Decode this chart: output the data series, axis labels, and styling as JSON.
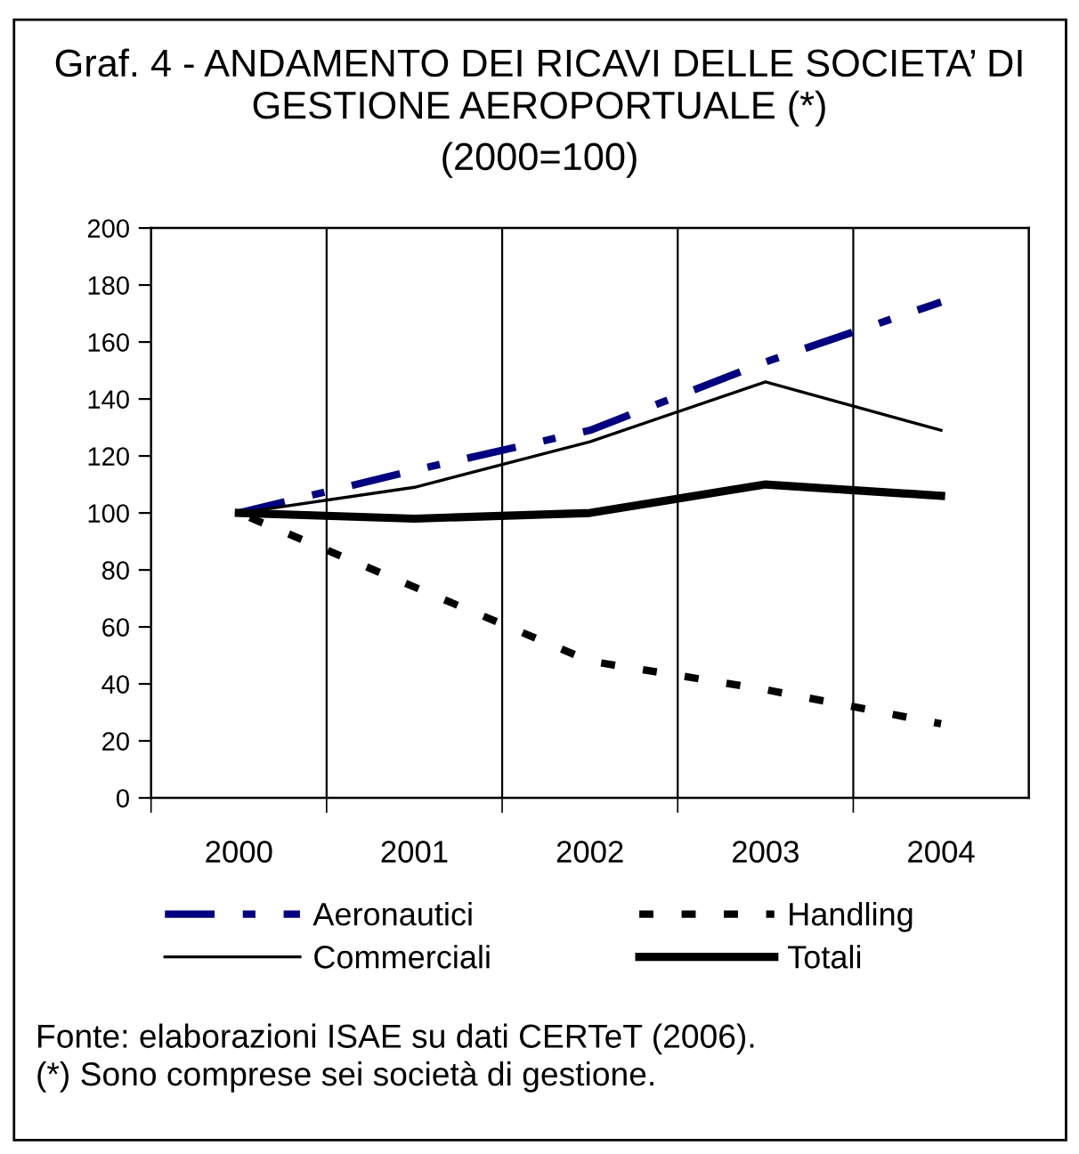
{
  "chart_data": {
    "type": "line",
    "title": "Graf. 4 - ANDAMENTO DEI RICAVI DELLE SOCIETA’ DI GESTIONE AEROPORTUALE (*)",
    "subtitle": "(2000=100)",
    "categories": [
      "2000",
      "2001",
      "2002",
      "2003",
      "2004"
    ],
    "series": [
      {
        "name": "Aeronautici",
        "color": "#000080",
        "line_style": "dashed",
        "values": [
          100,
          115,
          129,
          153,
          174
        ]
      },
      {
        "name": "Handling",
        "color": "#000000",
        "line_style": "dotted",
        "values": [
          100,
          74,
          48,
          38,
          26
        ]
      },
      {
        "name": "Commerciali",
        "color": "#000000",
        "line_style": "solid",
        "values": [
          100,
          109,
          125,
          146,
          129
        ]
      },
      {
        "name": "Totali",
        "color": "#000000",
        "line_style": "solid",
        "values": [
          100,
          98,
          100,
          110,
          106
        ]
      }
    ],
    "ylim": [
      0,
      200
    ],
    "yticks": [
      0,
      20,
      40,
      60,
      80,
      100,
      120,
      140,
      160,
      180,
      200
    ],
    "grid": "x",
    "legend": "bottom",
    "marker": "none",
    "annotations": [
      "Fonte: elaborazioni ISAE su dati CERTeT (2006).",
      "(*) Sono comprese sei società di gestione."
    ]
  }
}
